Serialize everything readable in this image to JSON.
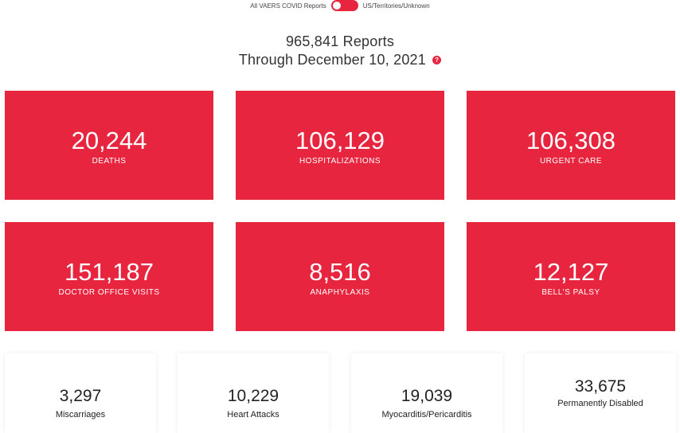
{
  "toggle": {
    "left_label": "All VAERS COVID Reports",
    "right_label": "US/Territories/Unknown",
    "accent_color": "#e8253f"
  },
  "header": {
    "reports_line": "965,841 Reports",
    "date_line": "Through December 10, 2021",
    "help_icon": "?"
  },
  "cards": [
    {
      "value": "20,244",
      "label": "DEATHS"
    },
    {
      "value": "106,129",
      "label": "HOSPITALIZATIONS"
    },
    {
      "value": "106,308",
      "label": "URGENT CARE"
    },
    {
      "value": "151,187",
      "label": "DOCTOR OFFICE VISITS"
    },
    {
      "value": "8,516",
      "label": "ANAPHYLAXIS"
    },
    {
      "value": "12,127",
      "label": "BELL'S PALSY"
    }
  ],
  "stats": [
    {
      "value": "3,297",
      "label": "Miscarriages"
    },
    {
      "value": "10,229",
      "label": "Heart Attacks"
    },
    {
      "value": "19,039",
      "label": "Myocarditis/Pericarditis"
    },
    {
      "value": "33,675",
      "label": "Permanently Disabled"
    }
  ]
}
